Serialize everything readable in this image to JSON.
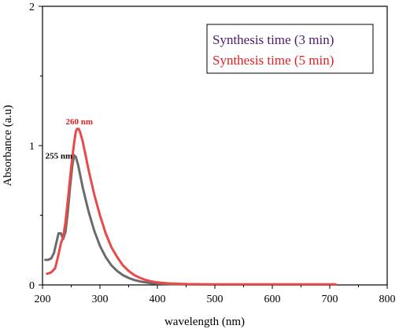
{
  "chart_data": {
    "type": "line",
    "title": "",
    "xlabel": "wavelength (nm)",
    "ylabel": "Absorbance (a.u)",
    "xlim": [
      200,
      800
    ],
    "ylim": [
      0,
      2
    ],
    "xticks": [
      200,
      300,
      400,
      500,
      600,
      700,
      800
    ],
    "yticks": [
      0,
      1,
      2
    ],
    "grid": false,
    "legend_position": "top-right",
    "series": [
      {
        "name": "Synthesis time (3 min)",
        "legend_color": "#4b1a6e",
        "line_color": "#6b6b6b",
        "x": [
          205,
          210,
          215,
          220,
          224,
          228,
          232,
          236,
          240,
          244,
          248,
          252,
          255,
          258,
          262,
          266,
          270,
          280,
          290,
          300,
          310,
          320,
          330,
          340,
          350,
          360,
          370,
          380,
          390,
          400,
          420,
          450,
          500,
          600,
          700,
          710
        ],
        "y": [
          0.18,
          0.18,
          0.19,
          0.23,
          0.3,
          0.37,
          0.37,
          0.33,
          0.38,
          0.52,
          0.7,
          0.86,
          0.93,
          0.92,
          0.86,
          0.78,
          0.7,
          0.53,
          0.39,
          0.28,
          0.2,
          0.14,
          0.1,
          0.07,
          0.05,
          0.035,
          0.025,
          0.018,
          0.012,
          0.009,
          0.006,
          0.004,
          0.003,
          0.003,
          0.003,
          0.003
        ]
      },
      {
        "name": "Synthesis time (5 min)",
        "legend_color": "#e02020",
        "line_color": "#e84a4a",
        "x": [
          208,
          215,
          222,
          228,
          232,
          236,
          240,
          245,
          250,
          255,
          258,
          260,
          263,
          266,
          270,
          275,
          280,
          290,
          300,
          310,
          320,
          330,
          340,
          350,
          360,
          370,
          380,
          390,
          400,
          420,
          450,
          500,
          600,
          700,
          710
        ],
        "y": [
          0.08,
          0.09,
          0.12,
          0.22,
          0.3,
          0.34,
          0.45,
          0.64,
          0.85,
          1.02,
          1.1,
          1.12,
          1.12,
          1.09,
          1.03,
          0.93,
          0.83,
          0.65,
          0.5,
          0.37,
          0.27,
          0.2,
          0.14,
          0.1,
          0.07,
          0.05,
          0.035,
          0.025,
          0.018,
          0.011,
          0.006,
          0.004,
          0.004,
          0.004,
          0.004
        ]
      }
    ],
    "annotations": [
      {
        "text": "255 nm",
        "x": 255,
        "y": 0.93,
        "color": "#000000"
      },
      {
        "text": "260 nm",
        "x": 260,
        "y": 1.12,
        "color": "#e02020"
      }
    ]
  }
}
